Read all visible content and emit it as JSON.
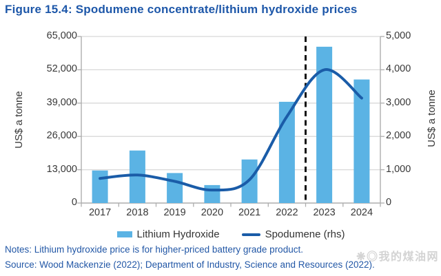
{
  "title": "Figure 15.4: Spodumene concentrate/lithium hydroxide prices",
  "chart_data": {
    "type": "bar",
    "subtype": "bar+line combo, dual axis",
    "categories": [
      "2017",
      "2018",
      "2019",
      "2020",
      "2021",
      "2022",
      "2023",
      "2024"
    ],
    "series": [
      {
        "name": "Lithium Hydroxide",
        "type": "bar",
        "axis": "left",
        "values": [
          12700,
          20500,
          11700,
          7000,
          17000,
          39500,
          61000,
          48200
        ]
      },
      {
        "name": "Spodumene (rhs)",
        "type": "line",
        "axis": "right",
        "values": [
          740,
          840,
          650,
          390,
          700,
          2600,
          4000,
          3150
        ]
      }
    ],
    "left_axis": {
      "label": "US$ a tonne",
      "min": 0,
      "max": 65000,
      "tick_labels": [
        "65,000",
        "52,000",
        "39,000",
        "26,000",
        "13,000",
        "0"
      ]
    },
    "right_axis": {
      "label": "US$ a tonne",
      "min": 0,
      "max": 5000,
      "tick_labels": [
        "5,000",
        "4,000",
        "3,000",
        "2,000",
        "1,000",
        "0"
      ]
    },
    "forecast_divider_after": "2022",
    "grid": true,
    "legend_position": "bottom"
  },
  "legend": {
    "items": [
      {
        "label": "Lithium Hydroxide",
        "swatch": "bar"
      },
      {
        "label": "Spodumene (rhs)",
        "swatch": "line"
      }
    ]
  },
  "notes": "Notes: Lithium hydroxide price is for higher-priced battery grade product.",
  "source": "Source: Wood Mackenzie (2022); Department of Industry, Science and Resources (2022).",
  "watermark": "❋◎我的煤油网",
  "colors": {
    "bar": "#5BB3E4",
    "line": "#1A5CA8",
    "title_text": "#1D57A9",
    "notes_text": "#2257A6",
    "gridline": "#D8D8D8",
    "axis": "#ADADAD",
    "tick_text": "#383838",
    "forecast_divider": "#111111",
    "watermark": "#969696"
  }
}
